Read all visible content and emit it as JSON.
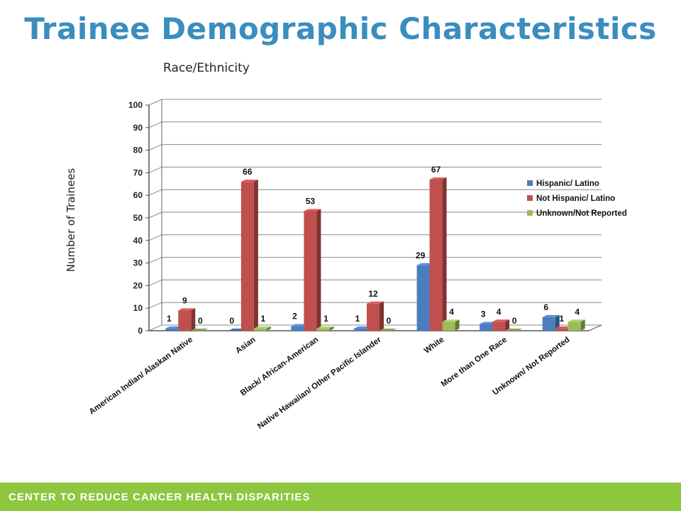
{
  "slide": {
    "title": "Trainee Demographic Characteristics",
    "footer": "CENTER TO REDUCE CANCER HEALTH DISPARITIES"
  },
  "colors": {
    "title": "#3a8dbf",
    "footer_bar": "#8dc63f",
    "series": [
      "#4a7ebf",
      "#c0504d",
      "#9bbb59"
    ]
  },
  "chart_data": {
    "type": "bar",
    "title": "Race/Ethnicity",
    "xlabel": "",
    "ylabel": "Number of Trainees",
    "ylim": [
      0,
      100
    ],
    "yticks": [
      0,
      10,
      20,
      30,
      40,
      50,
      60,
      70,
      80,
      90,
      100
    ],
    "grid": true,
    "legend_position": "right",
    "categories": [
      "American Indian/ Alaskan Native",
      "Asian",
      "Black/ African-American",
      "Native Hawaiian/ Other Pacific Islander",
      "White",
      "More than One Race",
      "Unknown/ Not Reported"
    ],
    "series": [
      {
        "name": "Hispanic/ Latino",
        "values": [
          1,
          0,
          2,
          1,
          29,
          3,
          6
        ]
      },
      {
        "name": "Not Hispanic/ Latino",
        "values": [
          9,
          66,
          53,
          12,
          67,
          4,
          1
        ]
      },
      {
        "name": "Unknown/Not Reported",
        "values": [
          0,
          1,
          1,
          0,
          4,
          0,
          4
        ]
      }
    ]
  }
}
